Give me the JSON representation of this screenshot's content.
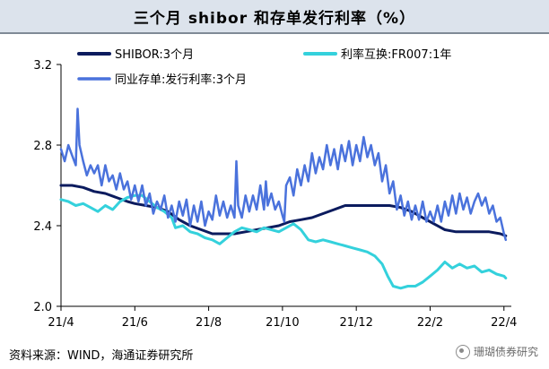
{
  "title": "三个月 shibor 和存单发行利率（%）",
  "source": "资料来源：WIND，海通证券研究所",
  "watermark": "珊瑚债券研究",
  "chart_data": {
    "type": "line",
    "ylim": [
      2.0,
      3.2
    ],
    "yticks": [
      "2.0",
      "2.4",
      "2.8",
      "3.2"
    ],
    "xlim": [
      0,
      12.2
    ],
    "xticks": [
      {
        "label": "21/4",
        "x": 0
      },
      {
        "label": "21/6",
        "x": 2
      },
      {
        "label": "21/8",
        "x": 4
      },
      {
        "label": "21/10",
        "x": 6
      },
      {
        "label": "21/12",
        "x": 8
      },
      {
        "label": "22/2",
        "x": 10
      },
      {
        "label": "22/4",
        "x": 12
      }
    ],
    "legend_position": "top",
    "series": [
      {
        "name": "SHIBOR:3个月",
        "color": "#0b1b5e",
        "width": 3,
        "points": [
          [
            0,
            2.6
          ],
          [
            0.3,
            2.6
          ],
          [
            0.6,
            2.59
          ],
          [
            0.9,
            2.57
          ],
          [
            1.2,
            2.56
          ],
          [
            1.5,
            2.54
          ],
          [
            1.8,
            2.52
          ],
          [
            2.0,
            2.51
          ],
          [
            2.3,
            2.5
          ],
          [
            2.6,
            2.49
          ],
          [
            2.9,
            2.47
          ],
          [
            3.2,
            2.43
          ],
          [
            3.5,
            2.4
          ],
          [
            3.8,
            2.38
          ],
          [
            4.1,
            2.36
          ],
          [
            4.4,
            2.36
          ],
          [
            4.7,
            2.36
          ],
          [
            5.0,
            2.37
          ],
          [
            5.3,
            2.38
          ],
          [
            5.6,
            2.39
          ],
          [
            5.9,
            2.4
          ],
          [
            6.2,
            2.42
          ],
          [
            6.5,
            2.43
          ],
          [
            6.8,
            2.44
          ],
          [
            7.1,
            2.46
          ],
          [
            7.4,
            2.48
          ],
          [
            7.7,
            2.5
          ],
          [
            8.0,
            2.5
          ],
          [
            8.3,
            2.5
          ],
          [
            8.6,
            2.5
          ],
          [
            8.9,
            2.5
          ],
          [
            9.2,
            2.49
          ],
          [
            9.5,
            2.47
          ],
          [
            9.8,
            2.44
          ],
          [
            10.1,
            2.41
          ],
          [
            10.4,
            2.38
          ],
          [
            10.7,
            2.37
          ],
          [
            11.0,
            2.37
          ],
          [
            11.3,
            2.37
          ],
          [
            11.6,
            2.37
          ],
          [
            11.9,
            2.36
          ],
          [
            12.05,
            2.35
          ]
        ]
      },
      {
        "name": "利率互换:FR007:1年",
        "color": "#34d1dc",
        "width": 3,
        "points": [
          [
            0,
            2.53
          ],
          [
            0.2,
            2.52
          ],
          [
            0.4,
            2.5
          ],
          [
            0.6,
            2.51
          ],
          [
            0.8,
            2.49
          ],
          [
            1.0,
            2.47
          ],
          [
            1.2,
            2.5
          ],
          [
            1.4,
            2.48
          ],
          [
            1.6,
            2.52
          ],
          [
            1.8,
            2.54
          ],
          [
            2.0,
            2.55
          ],
          [
            2.2,
            2.55
          ],
          [
            2.4,
            2.52
          ],
          [
            2.6,
            2.49
          ],
          [
            2.8,
            2.47
          ],
          [
            3.0,
            2.44
          ],
          [
            3.1,
            2.39
          ],
          [
            3.3,
            2.4
          ],
          [
            3.5,
            2.37
          ],
          [
            3.7,
            2.36
          ],
          [
            3.9,
            2.34
          ],
          [
            4.1,
            2.33
          ],
          [
            4.3,
            2.31
          ],
          [
            4.5,
            2.34
          ],
          [
            4.7,
            2.37
          ],
          [
            4.9,
            2.39
          ],
          [
            5.1,
            2.38
          ],
          [
            5.3,
            2.37
          ],
          [
            5.5,
            2.39
          ],
          [
            5.7,
            2.38
          ],
          [
            5.9,
            2.37
          ],
          [
            6.1,
            2.39
          ],
          [
            6.3,
            2.41
          ],
          [
            6.5,
            2.38
          ],
          [
            6.7,
            2.33
          ],
          [
            6.9,
            2.32
          ],
          [
            7.1,
            2.33
          ],
          [
            7.3,
            2.32
          ],
          [
            7.5,
            2.31
          ],
          [
            7.7,
            2.3
          ],
          [
            7.9,
            2.29
          ],
          [
            8.1,
            2.28
          ],
          [
            8.3,
            2.27
          ],
          [
            8.5,
            2.25
          ],
          [
            8.7,
            2.21
          ],
          [
            8.85,
            2.15
          ],
          [
            9.0,
            2.1
          ],
          [
            9.2,
            2.09
          ],
          [
            9.4,
            2.1
          ],
          [
            9.6,
            2.1
          ],
          [
            9.8,
            2.12
          ],
          [
            10.0,
            2.15
          ],
          [
            10.2,
            2.18
          ],
          [
            10.4,
            2.22
          ],
          [
            10.6,
            2.19
          ],
          [
            10.8,
            2.21
          ],
          [
            11.0,
            2.19
          ],
          [
            11.2,
            2.2
          ],
          [
            11.4,
            2.17
          ],
          [
            11.6,
            2.18
          ],
          [
            11.8,
            2.16
          ],
          [
            12.0,
            2.15
          ],
          [
            12.05,
            2.14
          ]
        ]
      },
      {
        "name": "同业存单:发行利率:3个月",
        "color": "#4a72dc",
        "width": 2.5,
        "points": [
          [
            0,
            2.78
          ],
          [
            0.1,
            2.72
          ],
          [
            0.2,
            2.8
          ],
          [
            0.3,
            2.75
          ],
          [
            0.4,
            2.7
          ],
          [
            0.45,
            2.98
          ],
          [
            0.5,
            2.8
          ],
          [
            0.6,
            2.72
          ],
          [
            0.7,
            2.65
          ],
          [
            0.8,
            2.7
          ],
          [
            0.9,
            2.66
          ],
          [
            1.0,
            2.7
          ],
          [
            1.1,
            2.6
          ],
          [
            1.2,
            2.7
          ],
          [
            1.3,
            2.62
          ],
          [
            1.4,
            2.65
          ],
          [
            1.5,
            2.58
          ],
          [
            1.6,
            2.66
          ],
          [
            1.7,
            2.58
          ],
          [
            1.8,
            2.62
          ],
          [
            1.9,
            2.53
          ],
          [
            2.0,
            2.6
          ],
          [
            2.1,
            2.52
          ],
          [
            2.2,
            2.6
          ],
          [
            2.3,
            2.5
          ],
          [
            2.4,
            2.56
          ],
          [
            2.5,
            2.46
          ],
          [
            2.6,
            2.52
          ],
          [
            2.7,
            2.48
          ],
          [
            2.8,
            2.55
          ],
          [
            2.9,
            2.44
          ],
          [
            3.0,
            2.5
          ],
          [
            3.1,
            2.42
          ],
          [
            3.2,
            2.52
          ],
          [
            3.3,
            2.45
          ],
          [
            3.4,
            2.53
          ],
          [
            3.5,
            2.4
          ],
          [
            3.6,
            2.5
          ],
          [
            3.7,
            2.42
          ],
          [
            3.8,
            2.52
          ],
          [
            3.9,
            2.4
          ],
          [
            4.0,
            2.47
          ],
          [
            4.1,
            2.43
          ],
          [
            4.2,
            2.55
          ],
          [
            4.3,
            2.45
          ],
          [
            4.4,
            2.52
          ],
          [
            4.5,
            2.44
          ],
          [
            4.6,
            2.5
          ],
          [
            4.7,
            2.44
          ],
          [
            4.75,
            2.72
          ],
          [
            4.8,
            2.5
          ],
          [
            4.9,
            2.44
          ],
          [
            5.0,
            2.55
          ],
          [
            5.1,
            2.47
          ],
          [
            5.2,
            2.55
          ],
          [
            5.3,
            2.48
          ],
          [
            5.4,
            2.6
          ],
          [
            5.5,
            2.48
          ],
          [
            5.55,
            2.62
          ],
          [
            5.6,
            2.5
          ],
          [
            5.7,
            2.56
          ],
          [
            5.8,
            2.48
          ],
          [
            5.9,
            2.52
          ],
          [
            6.0,
            2.45
          ],
          [
            6.05,
            2.42
          ],
          [
            6.1,
            2.6
          ],
          [
            6.2,
            2.64
          ],
          [
            6.3,
            2.55
          ],
          [
            6.4,
            2.68
          ],
          [
            6.5,
            2.6
          ],
          [
            6.6,
            2.7
          ],
          [
            6.7,
            2.62
          ],
          [
            6.8,
            2.76
          ],
          [
            6.9,
            2.66
          ],
          [
            7.0,
            2.74
          ],
          [
            7.1,
            2.68
          ],
          [
            7.2,
            2.8
          ],
          [
            7.3,
            2.7
          ],
          [
            7.4,
            2.78
          ],
          [
            7.5,
            2.68
          ],
          [
            7.6,
            2.8
          ],
          [
            7.7,
            2.72
          ],
          [
            7.8,
            2.82
          ],
          [
            7.9,
            2.7
          ],
          [
            8.0,
            2.8
          ],
          [
            8.1,
            2.72
          ],
          [
            8.2,
            2.84
          ],
          [
            8.3,
            2.74
          ],
          [
            8.4,
            2.8
          ],
          [
            8.5,
            2.7
          ],
          [
            8.6,
            2.76
          ],
          [
            8.7,
            2.62
          ],
          [
            8.8,
            2.7
          ],
          [
            8.9,
            2.56
          ],
          [
            9.0,
            2.62
          ],
          [
            9.1,
            2.48
          ],
          [
            9.2,
            2.55
          ],
          [
            9.3,
            2.45
          ],
          [
            9.4,
            2.52
          ],
          [
            9.5,
            2.43
          ],
          [
            9.6,
            2.5
          ],
          [
            9.7,
            2.43
          ],
          [
            9.8,
            2.52
          ],
          [
            9.9,
            2.42
          ],
          [
            10.0,
            2.47
          ],
          [
            10.1,
            2.42
          ],
          [
            10.2,
            2.5
          ],
          [
            10.3,
            2.42
          ],
          [
            10.4,
            2.52
          ],
          [
            10.5,
            2.45
          ],
          [
            10.6,
            2.55
          ],
          [
            10.7,
            2.46
          ],
          [
            10.8,
            2.56
          ],
          [
            10.9,
            2.48
          ],
          [
            11.0,
            2.54
          ],
          [
            11.1,
            2.46
          ],
          [
            11.2,
            2.52
          ],
          [
            11.3,
            2.56
          ],
          [
            11.4,
            2.5
          ],
          [
            11.5,
            2.54
          ],
          [
            11.6,
            2.46
          ],
          [
            11.7,
            2.5
          ],
          [
            11.8,
            2.42
          ],
          [
            11.9,
            2.44
          ],
          [
            12.0,
            2.36
          ],
          [
            12.05,
            2.33
          ]
        ]
      }
    ]
  }
}
